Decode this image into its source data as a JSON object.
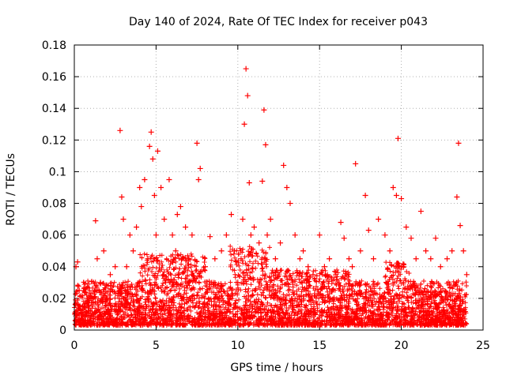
{
  "chart_data": {
    "type": "scatter",
    "title": "Day 140 of 2024, Rate Of TEC Index for receiver p043",
    "xlabel": "GPS time / hours",
    "ylabel": "ROTI / TECUs",
    "xlim": [
      0,
      25
    ],
    "ylim": [
      0,
      0.18
    ],
    "x_ticks": [
      0,
      5,
      10,
      15,
      20,
      25
    ],
    "y_ticks": [
      0,
      0.02,
      0.04,
      0.06,
      0.08,
      0.1,
      0.12,
      0.14,
      0.16,
      0.18
    ],
    "x_tick_labels": [
      "0",
      "5",
      "10",
      "15",
      "20",
      "25"
    ],
    "y_tick_labels": [
      "0",
      "0.02",
      "0.04",
      "0.06",
      "0.08",
      "0.1",
      "0.12",
      "0.14",
      "0.16",
      "0.18"
    ],
    "grid": true,
    "marker": "+",
    "series": [
      {
        "name": "ROTI",
        "color": "#ff0000",
        "x": [
          0.1,
          0.2,
          0.3,
          0.5,
          0.8,
          1.0,
          1.3,
          1.4,
          1.6,
          1.8,
          2.0,
          2.2,
          2.5,
          2.8,
          2.9,
          3.0,
          3.2,
          3.4,
          3.6,
          3.8,
          4.0,
          4.1,
          4.3,
          4.5,
          4.6,
          4.7,
          4.8,
          4.9,
          5.0,
          5.1,
          5.3,
          5.5,
          5.8,
          6.0,
          6.2,
          6.3,
          6.5,
          6.8,
          7.0,
          7.2,
          7.5,
          7.6,
          7.7,
          8.0,
          8.3,
          8.6,
          9.0,
          9.3,
          9.6,
          9.8,
          10.0,
          10.2,
          10.3,
          10.4,
          10.5,
          10.6,
          10.7,
          10.8,
          11.0,
          11.3,
          11.5,
          11.6,
          11.7,
          11.8,
          12.0,
          12.3,
          12.6,
          12.8,
          13.0,
          13.2,
          13.5,
          13.8,
          14.0,
          14.3,
          14.6,
          15.0,
          15.3,
          15.6,
          16.0,
          16.3,
          16.5,
          16.8,
          17.0,
          17.2,
          17.5,
          17.8,
          18.0,
          18.3,
          18.6,
          19.0,
          19.3,
          19.5,
          19.7,
          19.8,
          20.0,
          20.3,
          20.6,
          20.9,
          21.2,
          21.5,
          21.8,
          22.1,
          22.4,
          22.8,
          23.1,
          23.4,
          23.5,
          23.6,
          23.8,
          24.0
        ],
        "y": [
          0.04,
          0.043,
          0.025,
          0.015,
          0.02,
          0.012,
          0.069,
          0.045,
          0.03,
          0.05,
          0.02,
          0.035,
          0.04,
          0.126,
          0.084,
          0.07,
          0.04,
          0.06,
          0.05,
          0.065,
          0.09,
          0.078,
          0.095,
          0.045,
          0.116,
          0.125,
          0.108,
          0.085,
          0.06,
          0.113,
          0.09,
          0.07,
          0.095,
          0.06,
          0.05,
          0.073,
          0.078,
          0.065,
          0.045,
          0.06,
          0.118,
          0.095,
          0.102,
          0.04,
          0.059,
          0.045,
          0.05,
          0.06,
          0.073,
          0.05,
          0.03,
          0.045,
          0.07,
          0.13,
          0.165,
          0.148,
          0.093,
          0.06,
          0.065,
          0.055,
          0.094,
          0.139,
          0.117,
          0.06,
          0.07,
          0.045,
          0.055,
          0.104,
          0.09,
          0.08,
          0.06,
          0.045,
          0.05,
          0.04,
          0.035,
          0.06,
          0.04,
          0.045,
          0.035,
          0.068,
          0.058,
          0.045,
          0.04,
          0.105,
          0.05,
          0.085,
          0.063,
          0.045,
          0.07,
          0.06,
          0.05,
          0.09,
          0.085,
          0.121,
          0.083,
          0.065,
          0.058,
          0.045,
          0.075,
          0.05,
          0.045,
          0.058,
          0.04,
          0.045,
          0.05,
          0.084,
          0.118,
          0.066,
          0.05,
          0.035
        ]
      }
    ]
  }
}
